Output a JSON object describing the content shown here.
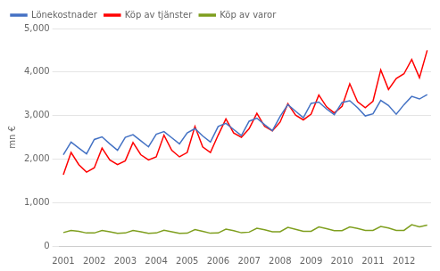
{
  "chart_data": {
    "type": "line",
    "ylabel": "mn €",
    "categories": [
      "2001",
      null,
      null,
      null,
      "2002",
      null,
      null,
      null,
      "2003",
      null,
      null,
      null,
      "2004",
      null,
      null,
      null,
      "2005",
      null,
      null,
      null,
      "2006",
      null,
      null,
      null,
      "2007",
      null,
      null,
      null,
      "2008",
      null,
      null,
      null,
      "2009",
      null,
      null,
      null,
      "2010",
      null,
      null,
      null,
      "2011",
      null,
      null,
      null,
      "2012",
      null,
      null,
      null
    ],
    "series": [
      {
        "name": "Lönekostnader",
        "color": "#4472c4",
        "values": [
          2100,
          2390,
          2250,
          2120,
          2450,
          2510,
          2350,
          2200,
          2500,
          2560,
          2420,
          2280,
          2570,
          2630,
          2490,
          2350,
          2600,
          2700,
          2530,
          2390,
          2750,
          2820,
          2680,
          2540,
          2870,
          2940,
          2790,
          2650,
          2980,
          3250,
          3100,
          2950,
          3280,
          3310,
          3150,
          3020,
          3300,
          3340,
          3180,
          2990,
          3040,
          3350,
          3230,
          3030,
          3250,
          3440,
          3380,
          3480
        ]
      },
      {
        "name": "Köp av tjänster",
        "color": "#ff0000",
        "values": [
          1640,
          2150,
          1870,
          1700,
          1800,
          2250,
          1980,
          1870,
          1960,
          2380,
          2100,
          1980,
          2050,
          2550,
          2200,
          2050,
          2150,
          2750,
          2280,
          2150,
          2550,
          2920,
          2600,
          2500,
          2700,
          3050,
          2750,
          2650,
          2850,
          3270,
          3010,
          2900,
          3030,
          3470,
          3200,
          3060,
          3210,
          3730,
          3320,
          3180,
          3330,
          4050,
          3600,
          3850,
          3960,
          4290,
          3870,
          4500
        ]
      },
      {
        "name": "Köp av varor",
        "color": "#7f9f1f",
        "values": [
          310,
          360,
          340,
          300,
          300,
          360,
          330,
          290,
          300,
          360,
          330,
          290,
          300,
          365,
          330,
          290,
          295,
          380,
          340,
          295,
          300,
          390,
          355,
          305,
          320,
          410,
          375,
          330,
          330,
          430,
          385,
          340,
          340,
          440,
          400,
          355,
          355,
          440,
          405,
          360,
          360,
          450,
          415,
          360,
          360,
          490,
          440,
          480
        ]
      }
    ],
    "ylim": [
      0,
      5000
    ],
    "yticks": [
      0,
      1000,
      2000,
      3000,
      4000,
      5000
    ],
    "grid": true,
    "legend": "upper left"
  }
}
